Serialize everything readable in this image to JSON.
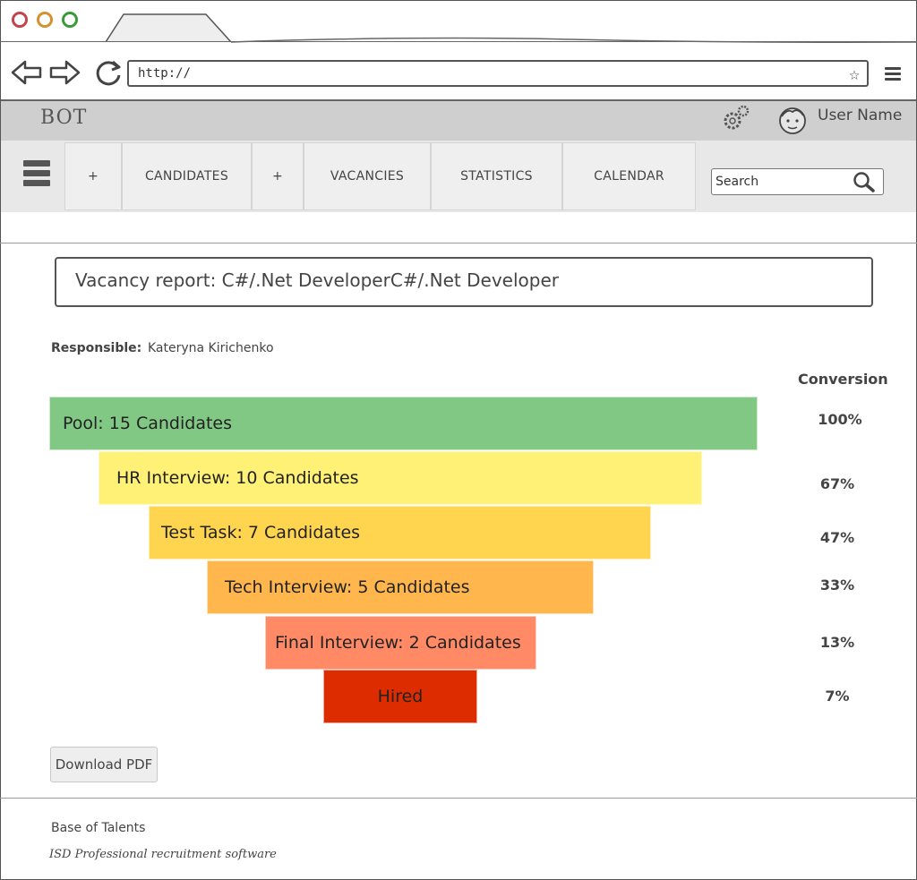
{
  "browser": {
    "url": "http://",
    "controls": {
      "back_icon": "back-arrow-icon",
      "forward_icon": "forward-arrow-icon",
      "reload_icon": "reload-icon",
      "bookmark_icon": "star-icon",
      "menu_icon": "hamburger-icon"
    },
    "window_dot_colors": [
      "#c1444e",
      "#d4912e",
      "#3a9a3a"
    ]
  },
  "header": {
    "brand": "BOT",
    "user_name": "User Name",
    "icons": {
      "settings": "gears-icon",
      "avatar": "user-face-icon"
    }
  },
  "toolbar": {
    "add1": "+",
    "candidates": "CANDIDATES",
    "add2": "+",
    "vacancies": "VACANCIES",
    "statistics": "STATISTICS",
    "calendar": "CALENDAR",
    "search_text": "Search"
  },
  "report": {
    "title": "Vacancy report: C#/.Net DeveloperC#/.Net Developer",
    "responsible_label": "Responsible:",
    "responsible_value": "Kateryna Kirichenko",
    "conversion_header": "Conversion",
    "download_label": "Download PDF"
  },
  "funnel": [
    {
      "label": "Pool: 15 Candidates",
      "conversion": "100%",
      "color": "#82c885"
    },
    {
      "label": "HR Interview: 10 Candidates",
      "conversion": "67%",
      "color": "#fff176"
    },
    {
      "label": "Test Task: 7 Candidates",
      "conversion": "47%",
      "color": "#ffd54f"
    },
    {
      "label": "Tech Interview: 5 Candidates",
      "conversion": "33%",
      "color": "#ffb74d"
    },
    {
      "label": "Final Interview: 2 Candidates",
      "conversion": "13%",
      "color": "#ff8a65"
    },
    {
      "label": "Hired",
      "conversion": "7%",
      "color": "#dd2c00"
    }
  ],
  "footer": {
    "line1": "Base of Talents",
    "line2": "ISD Professional recruitment software"
  }
}
